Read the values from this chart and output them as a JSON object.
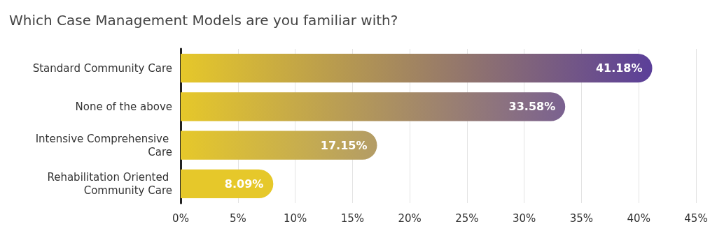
{
  "chart_data": {
    "type": "bar",
    "orientation": "horizontal",
    "title": "Which Case Management Models are you familiar with?",
    "categories": [
      "Standard Community Care",
      "None of the above",
      "Intensive Comprehensive Care",
      "Rehabilitation Oriented Community Care"
    ],
    "values": [
      41.18,
      33.58,
      17.15,
      8.09
    ],
    "value_labels": [
      "41.18%",
      "33.58%",
      "17.15%",
      "8.09%"
    ],
    "colors": [
      "#5b3f99",
      "#7a6190",
      "#b39c66",
      "#e6c82a"
    ],
    "xlim": [
      0,
      45
    ],
    "xticks": [
      {
        "value": 0,
        "label": "0%"
      },
      {
        "value": 5,
        "label": "5%"
      },
      {
        "value": 10,
        "label": "10%"
      },
      {
        "value": 15,
        "label": "15%"
      },
      {
        "value": 20,
        "label": "20%"
      },
      {
        "value": 25,
        "label": "25%"
      },
      {
        "value": 30,
        "label": "30%"
      },
      {
        "value": 35,
        "label": "35%"
      },
      {
        "value": 40,
        "label": "40%"
      },
      {
        "value": 45,
        "label": "45%"
      }
    ],
    "grid": "x"
  }
}
